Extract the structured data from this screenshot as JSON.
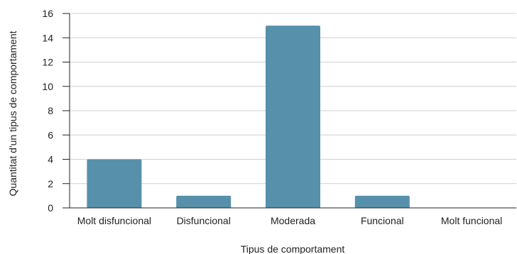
{
  "chart_data": {
    "type": "bar",
    "title": "",
    "xlabel": "Tipus de comportament",
    "ylabel": "Quantitat d'un tipus de comportament",
    "categories": [
      "Molt disfuncional",
      "Disfuncional",
      "Moderada",
      "Funcional",
      "Molt funcional"
    ],
    "values": [
      4,
      1,
      15,
      1,
      0
    ],
    "ylim": [
      0,
      16
    ],
    "yticks": [
      0,
      2,
      4,
      6,
      8,
      10,
      12,
      14,
      16
    ],
    "grid": true,
    "legend": "none",
    "colors": {
      "bar": "#5790ab",
      "grid": "#cfcfcf",
      "axis": "#222222"
    }
  }
}
